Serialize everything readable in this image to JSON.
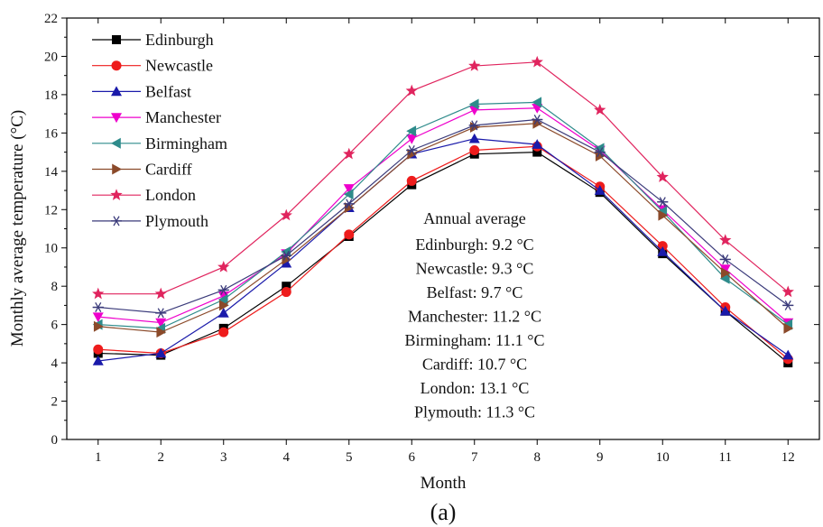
{
  "chart_data": {
    "type": "line",
    "xlabel": "Month",
    "ylabel": "Monthly average temperature (°C)",
    "caption": "(a)",
    "x": [
      1,
      2,
      3,
      4,
      5,
      6,
      7,
      8,
      9,
      10,
      11,
      12
    ],
    "xlim": [
      0.5,
      12.5
    ],
    "ylim": [
      0,
      22
    ],
    "xticks": [
      1,
      2,
      3,
      4,
      5,
      6,
      7,
      8,
      9,
      10,
      11,
      12
    ],
    "yticks": [
      0,
      2,
      4,
      6,
      8,
      10,
      12,
      14,
      16,
      18,
      20,
      22
    ],
    "grid": false,
    "legend_position": "top-left",
    "series": [
      {
        "name": "Edinburgh",
        "color": "#000000",
        "marker": "square",
        "values": [
          4.5,
          4.4,
          5.8,
          8.0,
          10.6,
          13.3,
          14.9,
          15.0,
          12.9,
          9.7,
          6.7,
          4.0
        ]
      },
      {
        "name": "Newcastle",
        "color": "#ee1c1c",
        "marker": "circle",
        "values": [
          4.7,
          4.5,
          5.6,
          7.7,
          10.7,
          13.5,
          15.1,
          15.3,
          13.2,
          10.1,
          6.9,
          4.2
        ]
      },
      {
        "name": "Belfast",
        "color": "#1a1aaa",
        "marker": "triangle-up",
        "values": [
          4.1,
          4.5,
          6.6,
          9.2,
          12.1,
          14.9,
          15.7,
          15.4,
          13.0,
          9.8,
          6.7,
          4.4
        ]
      },
      {
        "name": "Manchester",
        "color": "#ee00cc",
        "marker": "triangle-down",
        "values": [
          6.4,
          6.1,
          7.5,
          9.7,
          13.1,
          15.7,
          17.2,
          17.3,
          15.1,
          12.0,
          8.9,
          6.1
        ]
      },
      {
        "name": "Birmingham",
        "color": "#2e8b8b",
        "marker": "triangle-left",
        "values": [
          6.0,
          5.8,
          7.3,
          9.8,
          12.8,
          16.1,
          17.5,
          17.6,
          15.2,
          11.9,
          8.4,
          6.0
        ]
      },
      {
        "name": "Cardiff",
        "color": "#8b4a2a",
        "marker": "triangle-right",
        "values": [
          5.9,
          5.6,
          7.0,
          9.4,
          12.1,
          14.9,
          16.3,
          16.5,
          14.8,
          11.7,
          8.7,
          5.8
        ]
      },
      {
        "name": "London",
        "color": "#e0245e",
        "marker": "star",
        "values": [
          7.6,
          7.6,
          9.0,
          11.7,
          14.9,
          18.2,
          19.5,
          19.7,
          17.2,
          13.7,
          10.4,
          7.7
        ]
      },
      {
        "name": "Plymouth",
        "color": "#3a3a7a",
        "marker": "asterisk",
        "values": [
          6.9,
          6.6,
          7.8,
          9.6,
          12.3,
          15.1,
          16.4,
          16.7,
          15.0,
          12.4,
          9.4,
          7.0
        ]
      }
    ],
    "annotation": {
      "title": "Annual average",
      "lines": [
        "Edinburgh: 9.2 °C",
        "Newcastle: 9.3 °C",
        "Belfast: 9.7 °C",
        "Manchester: 11.2 °C",
        "Birmingham: 11.1 °C",
        "Cardiff: 10.7 °C",
        "London: 13.1  °C",
        "Plymouth: 11.3 °C"
      ]
    }
  }
}
